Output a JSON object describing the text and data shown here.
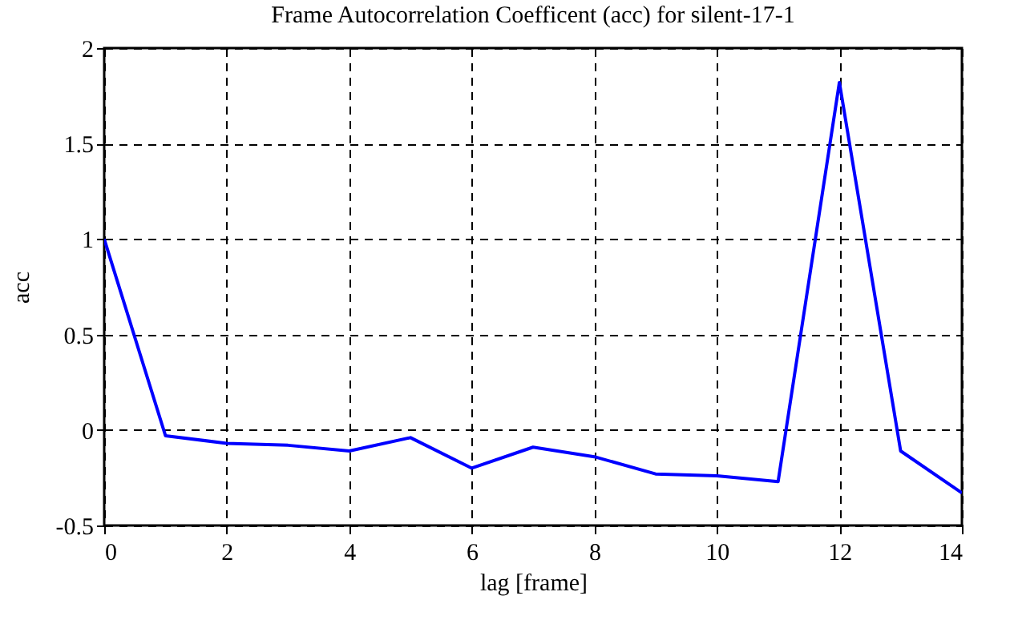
{
  "chart_data": {
    "type": "line",
    "title": "Frame Autocorrelation Coefficent (acc) for silent-17-1",
    "xlabel": "lag [frame]",
    "ylabel": "acc",
    "x": [
      0,
      1,
      2,
      3,
      4,
      5,
      6,
      7,
      8,
      9,
      10,
      11,
      12,
      13,
      14
    ],
    "series": [
      {
        "color": "#0000ff",
        "values": [
          1,
          -0.03,
          -0.07,
          -0.08,
          -0.11,
          -0.04,
          -0.2,
          -0.09,
          -0.14,
          -0.23,
          -0.24,
          -0.27,
          1.82,
          -0.11,
          -0.33
        ]
      }
    ],
    "xlim": [
      0,
      14
    ],
    "xticks": [
      0,
      2,
      4,
      6,
      8,
      10,
      12,
      14
    ],
    "ylim": [
      -0.5,
      2
    ],
    "yticks": [
      {
        "value": -0.5,
        "label": "-0.5"
      },
      {
        "value": 0,
        "label": "0"
      },
      {
        "value": 0.5,
        "label": "0.5"
      },
      {
        "value": 1,
        "label": "1"
      },
      {
        "value": 1.5,
        "label": "1.5"
      },
      {
        "value": 2,
        "label": "2"
      }
    ],
    "grid": true
  }
}
